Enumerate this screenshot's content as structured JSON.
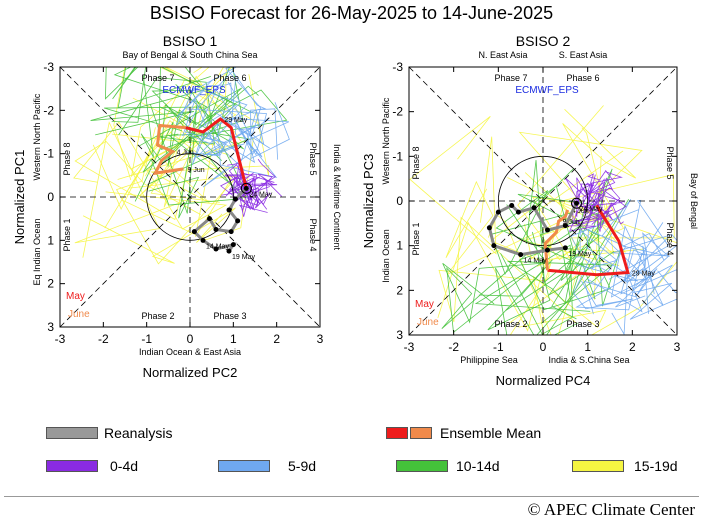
{
  "title": "BSISO Forecast for 26-May-2025 to 14-June-2025",
  "panels": [
    {
      "name": "BSISO 1",
      "model": "ECMWF_EPS",
      "xlabel": "Normalized PC2",
      "ylabel": "Normalized PC1",
      "top_region": "Bay of Bengal & South China Sea",
      "top_region_left": "",
      "top_region_right": "",
      "bottom_region": "Indian Ocean & East Asia",
      "bottom_region_left": "",
      "bottom_region_right": "",
      "left_region_upper": "Western North Pacific",
      "left_region_lower": "Eq Indian Ocean",
      "right_region": "India & Maritime Continent",
      "phases": [
        "Phase 1",
        "Phase 2",
        "Phase 3",
        "Phase 4",
        "Phase 5",
        "Phase 6",
        "Phase 7",
        "Phase 8"
      ],
      "month_labels": [
        "May",
        "June"
      ]
    },
    {
      "name": "BSISO 2",
      "model": "ECMWF_EPS",
      "xlabel": "Normalized PC4",
      "ylabel": "Normalized PC3",
      "top_region": "",
      "top_region_left": "N. East Asia",
      "top_region_right": "S. East Asia",
      "bottom_region": "",
      "bottom_region_left": "Philippine Sea",
      "bottom_region_right": "India & S.China Sea",
      "left_region_upper": "Western North Pacific",
      "left_region_lower": "Indian Ocean",
      "right_region": "Bay of Bengal",
      "phases": [
        "Phase 1",
        "Phase 2",
        "Phase 3",
        "Phase 4",
        "Phase 5",
        "Phase 6",
        "Phase 7",
        "Phase 8"
      ],
      "month_labels": [
        "May",
        "June"
      ]
    }
  ],
  "chart_data": [
    {
      "type": "scatter",
      "title": "BSISO 1",
      "xlabel": "Normalized PC2",
      "ylabel": "Normalized PC1",
      "xlim": [
        -3,
        3
      ],
      "ylim": [
        -3,
        3
      ],
      "y_inverted": true,
      "xticks": [
        "-3",
        "-2",
        "-1",
        "0",
        "1",
        "2",
        "3"
      ],
      "yticks": [
        "-3",
        "-2",
        "-1",
        "0",
        "1",
        "2",
        "3"
      ],
      "reanalysis": [
        {
          "x": 0.9,
          "y": 1.25,
          "label": "19 May"
        },
        {
          "x": 1.0,
          "y": 1.1,
          "label": ""
        },
        {
          "x": 0.6,
          "y": 1.2,
          "label": ""
        },
        {
          "x": 0.3,
          "y": 1.0,
          "label": "14 May"
        },
        {
          "x": 0.1,
          "y": 0.8,
          "label": ""
        },
        {
          "x": 0.45,
          "y": 0.5,
          "label": ""
        },
        {
          "x": 0.6,
          "y": 0.75,
          "label": ""
        },
        {
          "x": 0.95,
          "y": 0.8,
          "label": ""
        },
        {
          "x": 1.1,
          "y": 0.55,
          "label": ""
        },
        {
          "x": 0.9,
          "y": 0.3,
          "label": ""
        },
        {
          "x": 1.05,
          "y": 0.05,
          "label": ""
        },
        {
          "x": 1.3,
          "y": -0.2,
          "label": "24 May"
        }
      ],
      "ensemble_mean_may": [
        {
          "x": 1.3,
          "y": -0.2
        },
        {
          "x": 1.15,
          "y": -0.8
        },
        {
          "x": 0.95,
          "y": -1.6
        },
        {
          "x": 0.7,
          "y": -1.8,
          "label": "29 May"
        },
        {
          "x": 0.3,
          "y": -1.5
        },
        {
          "x": -0.1,
          "y": -1.6
        }
      ],
      "ensemble_mean_june": [
        {
          "x": -0.1,
          "y": -1.6
        },
        {
          "x": -0.7,
          "y": -1.65
        },
        {
          "x": -0.75,
          "y": -1.2
        },
        {
          "x": -0.4,
          "y": -1.05,
          "label": "4 Jun"
        },
        {
          "x": -0.65,
          "y": -0.85
        },
        {
          "x": -0.8,
          "y": -0.55
        },
        {
          "x": -0.15,
          "y": -0.65,
          "label": "9 Jun"
        }
      ],
      "series": [
        {
          "name": "0-4d",
          "color": "#8a2be2"
        },
        {
          "name": "5-9d",
          "color": "#6fa8f0"
        },
        {
          "name": "10-14d",
          "color": "#44c23a"
        },
        {
          "name": "15-19d",
          "color": "#f5f542"
        }
      ]
    },
    {
      "type": "scatter",
      "title": "BSISO 2",
      "xlabel": "Normalized PC4",
      "ylabel": "Normalized PC3",
      "xlim": [
        -3,
        3
      ],
      "ylim": [
        -3,
        3
      ],
      "y_inverted": true,
      "xticks": [
        "-3",
        "-2",
        "-1",
        "0",
        "1",
        "2",
        "3"
      ],
      "yticks": [
        "-3",
        "-2",
        "-1",
        "0",
        "1",
        "2",
        "3"
      ],
      "reanalysis": [
        {
          "x": 0.5,
          "y": 1.05,
          "label": "19 May"
        },
        {
          "x": 0.1,
          "y": 1.1,
          "label": ""
        },
        {
          "x": -0.5,
          "y": 1.2,
          "label": "14 May"
        },
        {
          "x": -1.1,
          "y": 1.0,
          "label": ""
        },
        {
          "x": -1.2,
          "y": 0.6,
          "label": ""
        },
        {
          "x": -1.0,
          "y": 0.25,
          "label": ""
        },
        {
          "x": -0.7,
          "y": 0.1,
          "label": ""
        },
        {
          "x": -0.55,
          "y": 0.25,
          "label": ""
        },
        {
          "x": -0.2,
          "y": 0.15,
          "label": ""
        },
        {
          "x": 0.1,
          "y": 0.65,
          "label": ""
        },
        {
          "x": 0.5,
          "y": 0.55,
          "label": ""
        },
        {
          "x": 0.75,
          "y": 0.05,
          "label": "24 May"
        }
      ],
      "ensemble_mean_may": [
        {
          "x": 1.2,
          "y": 0.1
        },
        {
          "x": 1.7,
          "y": 0.9
        },
        {
          "x": 1.9,
          "y": 1.6,
          "label": "29 May"
        },
        {
          "x": 1.2,
          "y": 1.65
        },
        {
          "x": 0.1,
          "y": 1.55
        }
      ],
      "ensemble_mean_june": [
        {
          "x": 0.1,
          "y": 1.55
        },
        {
          "x": 0.05,
          "y": 0.95
        },
        {
          "x": 0.3,
          "y": 0.7
        },
        {
          "x": 0.35,
          "y": 0.45,
          "label": "9 Jun"
        },
        {
          "x": 0.5,
          "y": 0.35
        },
        {
          "x": 0.55,
          "y": 0.2,
          "label": "4 Jun"
        }
      ],
      "series": [
        {
          "name": "0-4d",
          "color": "#8a2be2"
        },
        {
          "name": "5-9d",
          "color": "#6fa8f0"
        },
        {
          "name": "10-14d",
          "color": "#44c23a"
        },
        {
          "name": "15-19d",
          "color": "#f5f542"
        }
      ]
    }
  ],
  "legend": {
    "reanalysis": {
      "label": "Reanalysis",
      "color": "#999999"
    },
    "ensemble_mean": {
      "label": "Ensemble Mean",
      "colors": [
        "#ee1c1c",
        "#f08a4b"
      ]
    },
    "leads": [
      {
        "label": "0-4d",
        "color": "#8a2be2"
      },
      {
        "label": "5-9d",
        "color": "#6fa8f0"
      },
      {
        "label": "10-14d",
        "color": "#44c23a"
      },
      {
        "label": "15-19d",
        "color": "#f5f542"
      }
    ]
  },
  "colors": {
    "may": "#ee1c1c",
    "june": "#f08a4b",
    "model": "#1a2be0"
  },
  "credit": "© APEC Climate Center"
}
